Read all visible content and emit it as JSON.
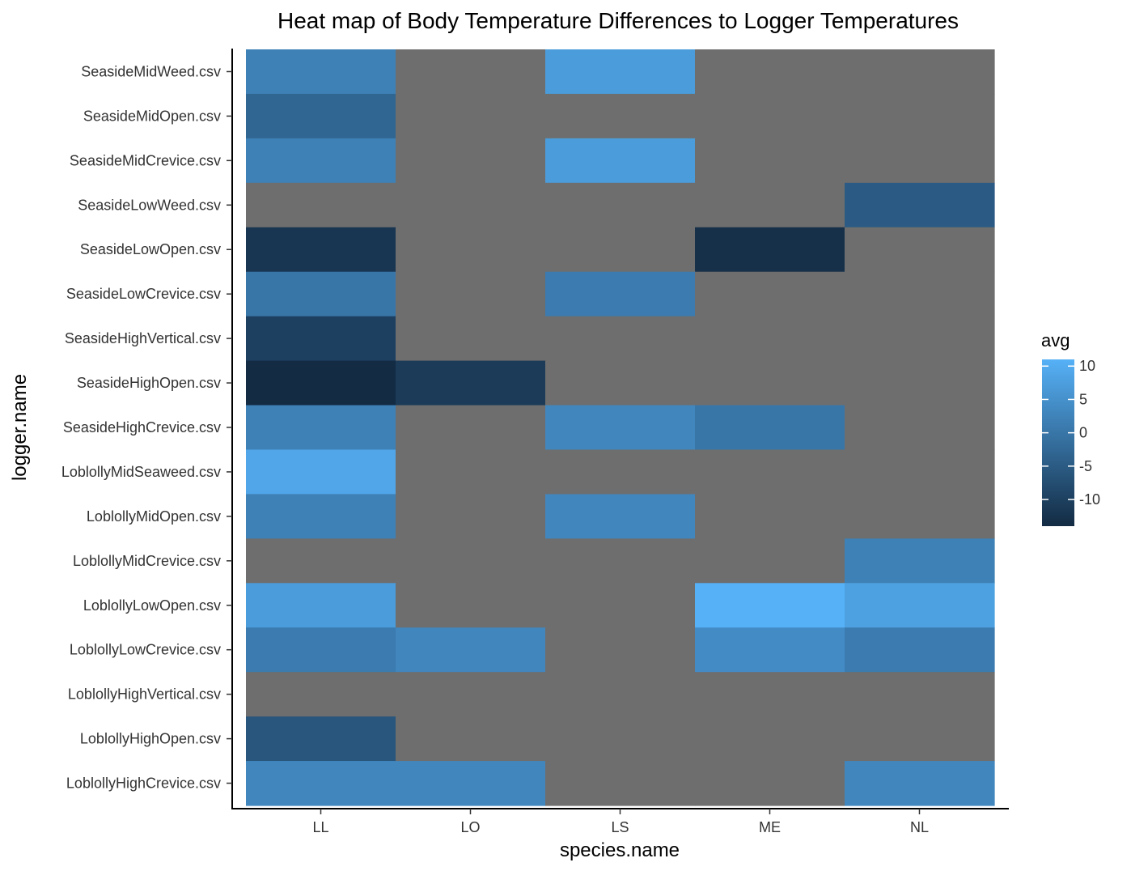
{
  "chart_data": {
    "type": "heatmap",
    "title": "Heat map of Body Temperature Differences to Logger Temperatures",
    "xlabel": "species.name",
    "ylabel": "logger.name",
    "x_categories": [
      "LL",
      "LO",
      "LS",
      "ME",
      "NL"
    ],
    "y_categories": [
      "SeasideMidWeed.csv",
      "SeasideMidOpen.csv",
      "SeasideMidCrevice.csv",
      "SeasideLowWeed.csv",
      "SeasideLowOpen.csv",
      "SeasideLowCrevice.csv",
      "SeasideHighVertical.csv",
      "SeasideHighOpen.csv",
      "SeasideHighCrevice.csv",
      "LoblollyMidSeaweed.csv",
      "LoblollyMidOpen.csv",
      "LoblollyMidCrevice.csv",
      "LoblollyLowOpen.csv",
      "LoblollyLowCrevice.csv",
      "LoblollyHighVertical.csv",
      "LoblollyHighOpen.csv",
      "LoblollyHighCrevice.csv"
    ],
    "values": [
      [
        2,
        null,
        7,
        null,
        null
      ],
      [
        -3,
        null,
        null,
        null,
        null
      ],
      [
        2,
        null,
        7,
        null,
        null
      ],
      [
        null,
        null,
        null,
        null,
        -5
      ],
      [
        -12,
        null,
        null,
        -13,
        null
      ],
      [
        0,
        null,
        1,
        null,
        null
      ],
      [
        -10,
        null,
        null,
        null,
        null
      ],
      [
        -14,
        -11,
        null,
        null,
        null
      ],
      [
        2,
        null,
        3,
        0,
        null
      ],
      [
        9,
        null,
        null,
        null,
        null
      ],
      [
        2,
        null,
        3,
        null,
        null
      ],
      [
        null,
        null,
        null,
        null,
        2
      ],
      [
        7,
        null,
        null,
        11,
        8
      ],
      [
        1,
        3,
        null,
        4,
        1
      ],
      [
        null,
        null,
        null,
        null,
        null
      ],
      [
        -6,
        null,
        null,
        null,
        null
      ],
      [
        3,
        3,
        null,
        null,
        3
      ]
    ],
    "legend": {
      "title": "avg",
      "breaks": [
        10,
        5,
        0,
        -5,
        -10
      ],
      "range": [
        -14,
        11
      ],
      "low_color": "#132b43",
      "high_color": "#56b1f7",
      "na_color": "#6e6e6e"
    },
    "grid": false
  }
}
